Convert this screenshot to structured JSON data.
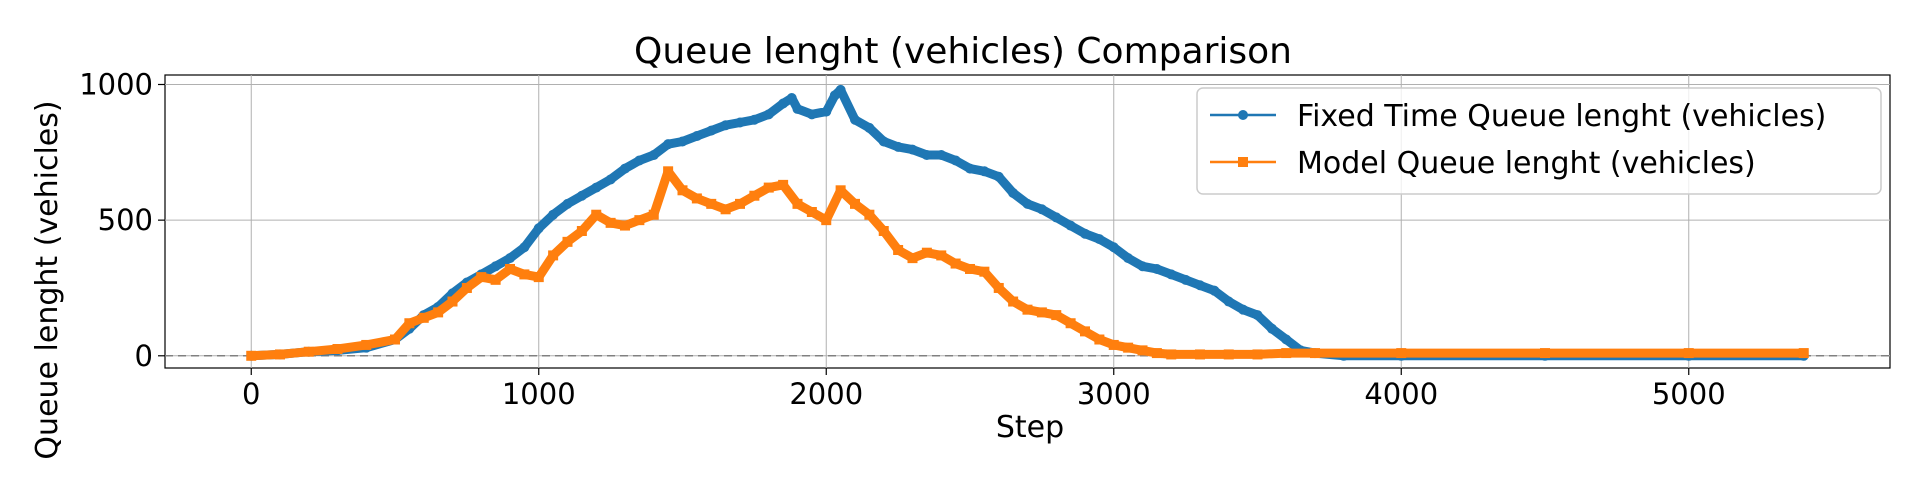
{
  "chart_data": {
    "type": "line",
    "title": "Queue lenght (vehicles) Comparison",
    "xlabel": "Step",
    "ylabel": "Queue lenght (vehicles)",
    "xlim": [
      -300,
      5700
    ],
    "ylim": [
      -45,
      1035
    ],
    "xticks": [
      0,
      1000,
      2000,
      3000,
      4000,
      5000
    ],
    "yticks": [
      0,
      500,
      1000
    ],
    "grid": true,
    "legend_position": "upper right",
    "reference_line": {
      "y": 0,
      "style": "dashed",
      "color": "#808080"
    },
    "series": [
      {
        "name": "Fixed Time Queue lenght (vehicles)",
        "color": "#1f77b4",
        "marker": "circle",
        "x": [
          0,
          100,
          200,
          300,
          400,
          500,
          550,
          600,
          650,
          700,
          750,
          800,
          850,
          900,
          950,
          1000,
          1050,
          1100,
          1150,
          1200,
          1250,
          1300,
          1350,
          1400,
          1450,
          1500,
          1550,
          1600,
          1650,
          1700,
          1750,
          1800,
          1850,
          1880,
          1900,
          1950,
          2000,
          2030,
          2050,
          2100,
          2150,
          2200,
          2250,
          2300,
          2350,
          2400,
          2450,
          2500,
          2550,
          2600,
          2650,
          2700,
          2750,
          2800,
          2850,
          2900,
          2950,
          3000,
          3050,
          3100,
          3150,
          3200,
          3250,
          3300,
          3350,
          3400,
          3450,
          3500,
          3550,
          3600,
          3650,
          3700,
          3800,
          4000,
          4500,
          5000,
          5400
        ],
        "y": [
          0,
          5,
          15,
          20,
          30,
          60,
          100,
          150,
          180,
          230,
          270,
          300,
          330,
          360,
          400,
          470,
          520,
          560,
          590,
          620,
          650,
          690,
          720,
          740,
          780,
          790,
          810,
          830,
          850,
          860,
          870,
          890,
          930,
          950,
          910,
          890,
          900,
          960,
          980,
          870,
          840,
          790,
          770,
          760,
          740,
          740,
          720,
          690,
          680,
          660,
          600,
          560,
          540,
          510,
          480,
          450,
          430,
          400,
          360,
          330,
          320,
          300,
          280,
          260,
          240,
          200,
          170,
          150,
          100,
          60,
          20,
          10,
          0,
          0,
          0,
          0,
          0
        ]
      },
      {
        "name": "Model Queue lenght (vehicles)",
        "color": "#ff7f0e",
        "marker": "square",
        "x": [
          0,
          100,
          200,
          300,
          400,
          500,
          550,
          600,
          650,
          700,
          750,
          800,
          850,
          900,
          950,
          1000,
          1050,
          1100,
          1150,
          1200,
          1250,
          1300,
          1350,
          1400,
          1450,
          1500,
          1550,
          1600,
          1650,
          1700,
          1750,
          1800,
          1850,
          1900,
          1950,
          2000,
          2050,
          2100,
          2150,
          2200,
          2250,
          2300,
          2350,
          2400,
          2450,
          2500,
          2550,
          2600,
          2650,
          2700,
          2750,
          2800,
          2850,
          2900,
          2950,
          3000,
          3050,
          3100,
          3150,
          3200,
          3300,
          3400,
          3500,
          3600,
          3700,
          4000,
          4500,
          5000,
          5400
        ],
        "y": [
          0,
          5,
          15,
          25,
          40,
          60,
          120,
          140,
          160,
          200,
          250,
          290,
          280,
          320,
          300,
          290,
          370,
          420,
          460,
          520,
          490,
          480,
          500,
          520,
          680,
          610,
          580,
          560,
          540,
          560,
          590,
          620,
          630,
          560,
          530,
          500,
          610,
          560,
          520,
          460,
          390,
          360,
          380,
          370,
          340,
          320,
          310,
          250,
          200,
          170,
          160,
          150,
          120,
          90,
          60,
          40,
          30,
          20,
          10,
          5,
          5,
          5,
          5,
          10,
          10,
          10,
          10,
          10,
          10
        ]
      }
    ]
  }
}
